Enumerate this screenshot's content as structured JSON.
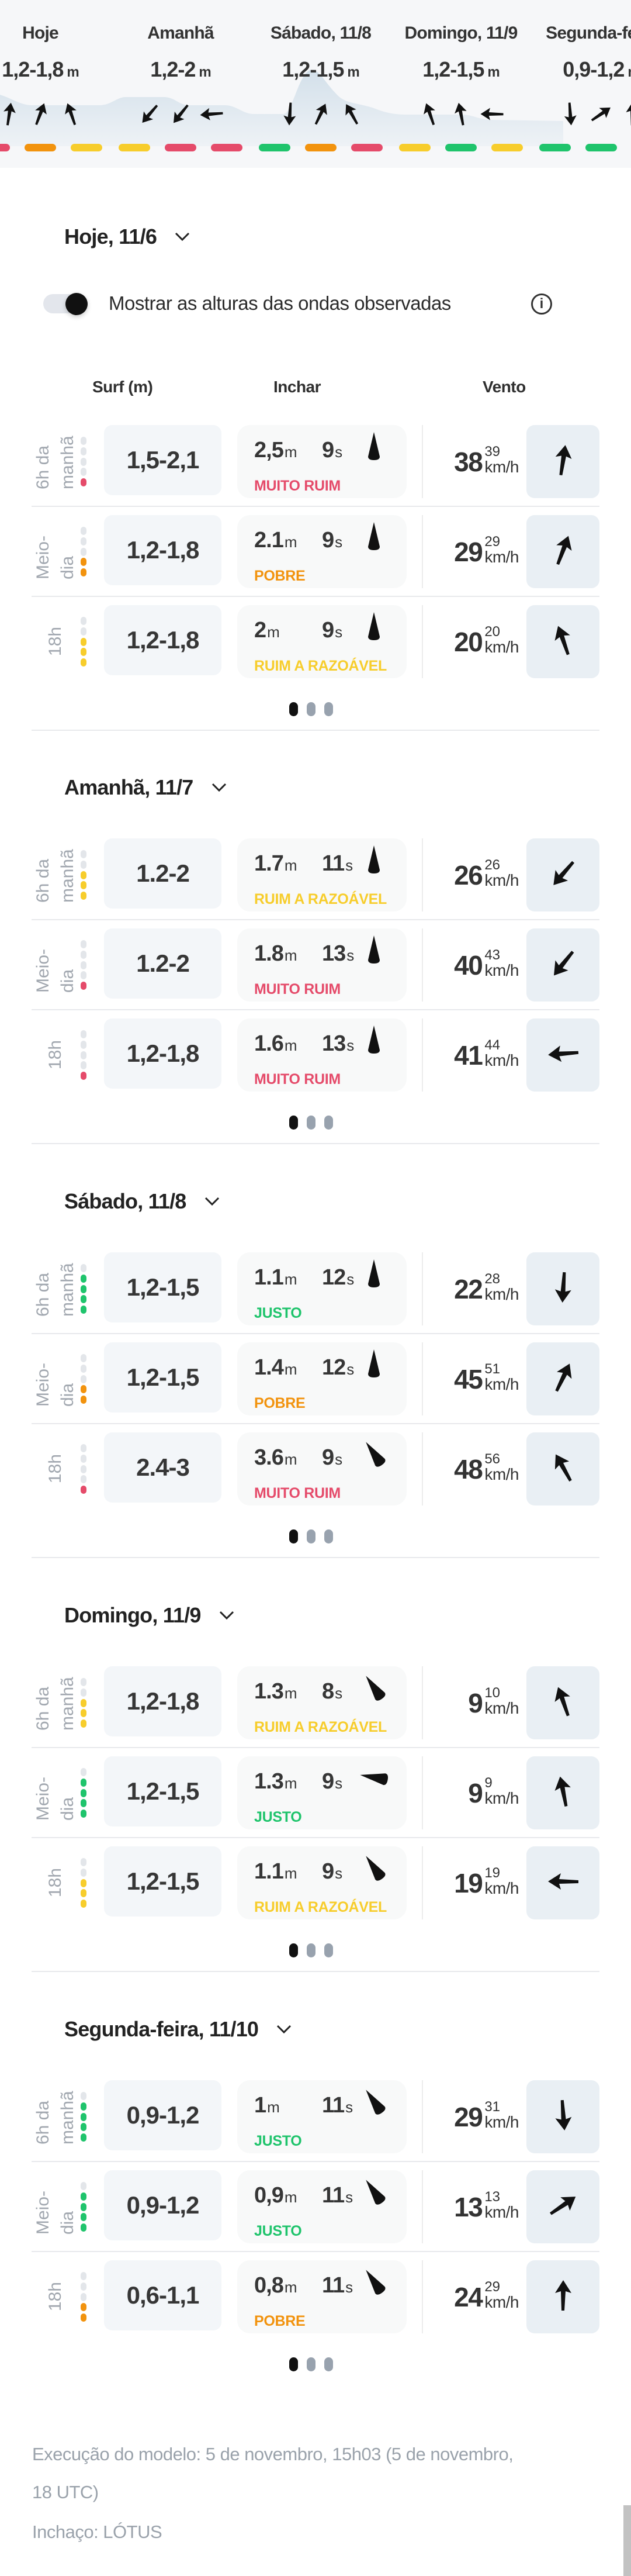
{
  "colors": {
    "muito_ruim": "#e54b6a",
    "pobre": "#f2930e",
    "ruim_a_razoavel": "#f7cd2c",
    "justo": "#1fc46c",
    "inactive_segment": "#e3e6ea",
    "wave_fill": "#d5e2ec"
  },
  "rating_levels": {
    "MUITO RUIM": 1,
    "POBRE": 2,
    "RUIM A RAZOÁVEL": 3,
    "JUSTO": 4
  },
  "strip": {
    "days": [
      {
        "label": "Hoje",
        "height": "1,2-1,8",
        "unit": "m"
      },
      {
        "label": "Amanhã",
        "height": "1,2-2",
        "unit": "m"
      },
      {
        "label": "Sábado, 11/8",
        "height": "1,2-1,5",
        "unit": "m"
      },
      {
        "label": "Domingo, 11/9",
        "height": "1,2-1,5",
        "unit": "m"
      },
      {
        "label": "Segunda-feira",
        "height": "0,9-1,2",
        "unit": "m"
      }
    ]
  },
  "toggle": {
    "label": "Mostrar as alturas das ondas observadas",
    "on": true,
    "info_icon": "info-icon"
  },
  "columns": {
    "surf": "Surf (m)",
    "swell": "Inchar",
    "wind": "Vento"
  },
  "days": [
    {
      "title": "Hoje, 11/6",
      "rows": [
        {
          "time": "6h da manhã",
          "surf": "1,5-2,1",
          "swell_height": "2,5",
          "swell_period": "9",
          "swell_dir_deg": 0,
          "rating": "MUITO RUIM",
          "wind": "38",
          "gust": "39",
          "wind_dir_deg": 8
        },
        {
          "time": "Meio-dia",
          "surf": "1,2-1,8",
          "swell_height": "2.1",
          "swell_period": "9",
          "swell_dir_deg": 0,
          "rating": "POBRE",
          "wind": "29",
          "gust": "29",
          "wind_dir_deg": 20
        },
        {
          "time": "18h",
          "surf": "1,2-1,8",
          "swell_height": "2",
          "swell_period": "9",
          "swell_dir_deg": 0,
          "rating": "RUIM A RAZOÁVEL",
          "wind": "20",
          "gust": "20",
          "wind_dir_deg": -20
        }
      ]
    },
    {
      "title": "Amanhã, 11/7",
      "rows": [
        {
          "time": "6h da manhã",
          "surf": "1.2-2",
          "swell_height": "1.7",
          "swell_period": "11",
          "swell_dir_deg": 0,
          "rating": "RUIM A RAZOÁVEL",
          "wind": "26",
          "gust": "26",
          "wind_dir_deg": 220
        },
        {
          "time": "Meio-dia",
          "surf": "1.2-2",
          "swell_height": "1.8",
          "swell_period": "13",
          "swell_dir_deg": 0,
          "rating": "MUITO RUIM",
          "wind": "40",
          "gust": "43",
          "wind_dir_deg": 218
        },
        {
          "time": "18h",
          "surf": "1,2-1,8",
          "swell_height": "1.6",
          "swell_period": "13",
          "swell_dir_deg": 0,
          "rating": "MUITO RUIM",
          "wind": "41",
          "gust": "44",
          "wind_dir_deg": 265
        }
      ]
    },
    {
      "title": "Sábado, 11/8",
      "rows": [
        {
          "time": "6h da manhã",
          "surf": "1,2-1,5",
          "swell_height": "1.1",
          "swell_period": "12",
          "swell_dir_deg": 0,
          "rating": "JUSTO",
          "wind": "22",
          "gust": "28",
          "wind_dir_deg": 183
        },
        {
          "time": "Meio-dia",
          "surf": "1,2-1,5",
          "swell_height": "1.4",
          "swell_period": "12",
          "swell_dir_deg": 0,
          "rating": "POBRE",
          "wind": "45",
          "gust": "51",
          "wind_dir_deg": 25
        },
        {
          "time": "18h",
          "surf": "2.4-3",
          "swell_height": "3.6",
          "swell_period": "9",
          "swell_dir_deg": -35,
          "rating": "MUITO RUIM",
          "wind": "48",
          "gust": "56",
          "wind_dir_deg": -30
        }
      ]
    },
    {
      "title": "Domingo, 11/9",
      "rows": [
        {
          "time": "6h da manhã",
          "surf": "1,2-1,8",
          "swell_height": "1.3",
          "swell_period": "8",
          "swell_dir_deg": -35,
          "rating": "RUIM A RAZOÁVEL",
          "wind": "9",
          "gust": "10",
          "wind_dir_deg": -20
        },
        {
          "time": "Meio-dia",
          "surf": "1,2-1,5",
          "swell_height": "1.3",
          "swell_period": "9",
          "swell_dir_deg": -80,
          "rating": "JUSTO",
          "wind": "9",
          "gust": "9",
          "wind_dir_deg": -12
        },
        {
          "time": "18h",
          "surf": "1,2-1,5",
          "swell_height": "1.1",
          "swell_period": "9",
          "swell_dir_deg": -35,
          "rating": "RUIM A RAZOÁVEL",
          "wind": "19",
          "gust": "19",
          "wind_dir_deg": 270
        }
      ]
    },
    {
      "title": "Segunda-feira, 11/10",
      "rows": [
        {
          "time": "6h da manhã",
          "surf": "0,9-1,2",
          "swell_height": "1",
          "swell_period": "11",
          "swell_dir_deg": -35,
          "rating": "JUSTO",
          "wind": "29",
          "gust": "31",
          "wind_dir_deg": 175
        },
        {
          "time": "Meio-dia",
          "surf": "0,9-1,2",
          "swell_height": "0,9",
          "swell_period": "11",
          "swell_dir_deg": -35,
          "rating": "JUSTO",
          "wind": "13",
          "gust": "13",
          "wind_dir_deg": 55
        },
        {
          "time": "18h",
          "surf": "0,6-1,1",
          "swell_height": "0,8",
          "swell_period": "11",
          "swell_dir_deg": -35,
          "rating": "POBRE",
          "wind": "24",
          "gust": "29",
          "wind_dir_deg": 0
        }
      ]
    }
  ],
  "units": {
    "swell_height": "m",
    "swell_period": "s",
    "wind": "km/h"
  },
  "pagination": {
    "pages": 3,
    "active": 0
  },
  "footer": {
    "model_run": "Execução do modelo: 5 de novembro, 15h03 (5 de novembro, 18 UTC)",
    "swell_model": "Inchaço: LÓTUS"
  }
}
